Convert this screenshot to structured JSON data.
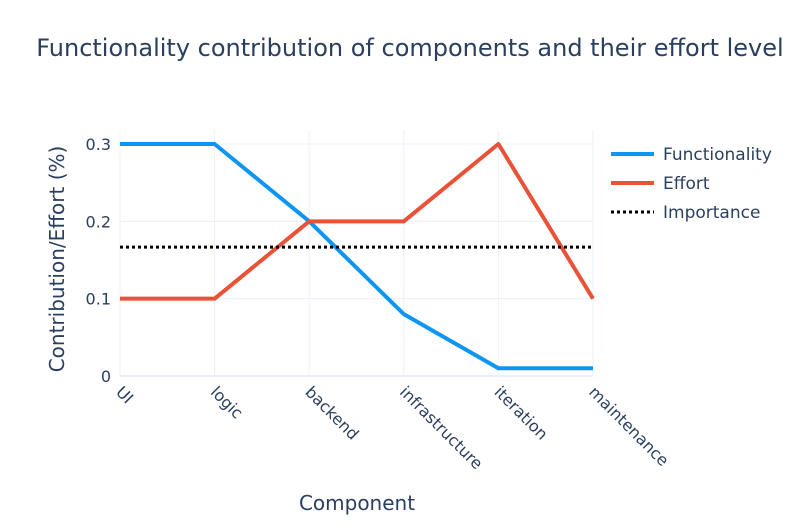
{
  "chart_data": {
    "type": "line",
    "title": "Functionality contribution of components and their effort level",
    "xlabel": "Component",
    "ylabel": "Contribution/Effort (%)",
    "categories": [
      "UI",
      "logic",
      "backend",
      "infrastructure",
      "iteration",
      "maintenance"
    ],
    "yticks": [
      "0",
      "0.1",
      "0.2",
      "0.3"
    ],
    "ylim": [
      0,
      0.3
    ],
    "grid": true,
    "legend_position": "top-right",
    "series": [
      {
        "name": "Functionality",
        "values": [
          0.3,
          0.3,
          0.2,
          0.08,
          0.01,
          0.01
        ],
        "color": "#0d96f1",
        "dash": "solid"
      },
      {
        "name": "Effort",
        "values": [
          0.1,
          0.1,
          0.2,
          0.2,
          0.3,
          0.1
        ],
        "color": "#ea5237",
        "dash": "solid"
      },
      {
        "name": "Importance",
        "values": [
          0.1667,
          0.1667,
          0.1667,
          0.1667,
          0.1667,
          0.1667
        ],
        "color": "#000000",
        "dash": "dot"
      }
    ]
  }
}
